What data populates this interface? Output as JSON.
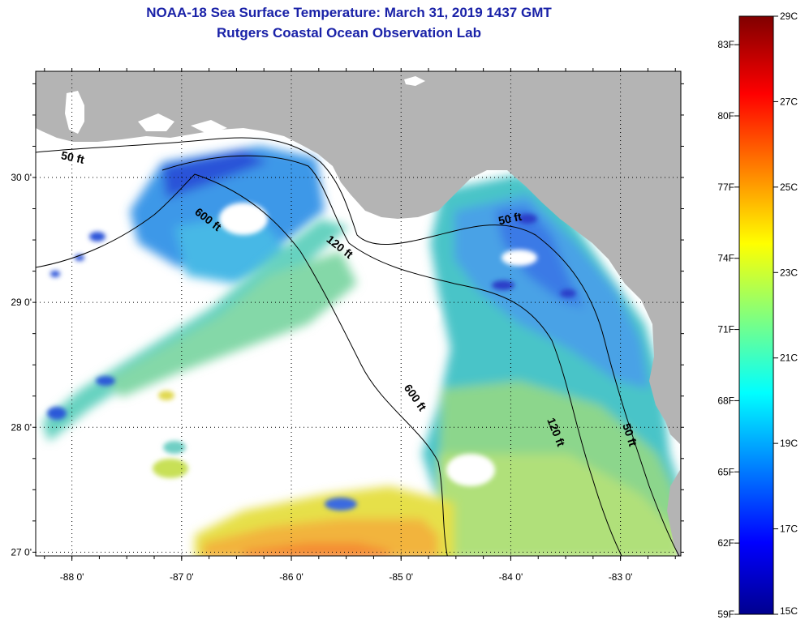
{
  "title": {
    "line1": "NOAA-18 Sea Surface Temperature:  March 31, 2019 1437 GMT",
    "line2": "Rutgers Coastal Ocean Observation Lab"
  },
  "map": {
    "lon_range": [
      -88.33,
      -82.45
    ],
    "lat_range": [
      26.97,
      30.85
    ],
    "lon_ticks": [
      {
        "value": -88,
        "label": "-88 0'"
      },
      {
        "value": -87,
        "label": "-87 0'"
      },
      {
        "value": -86,
        "label": "-86 0'"
      },
      {
        "value": -85,
        "label": "-85 0'"
      },
      {
        "value": -84,
        "label": "-84 0'"
      },
      {
        "value": -83,
        "label": "-83 0'"
      }
    ],
    "lat_ticks": [
      {
        "value": 27,
        "label": "27 0'"
      },
      {
        "value": 28,
        "label": "28 0'"
      },
      {
        "value": 29,
        "label": "29 0'"
      },
      {
        "value": 30,
        "label": "30 0'"
      }
    ],
    "contour_labels": [
      {
        "text": "50 ft",
        "lon": -88.0,
        "lat": 30.13,
        "angle": 12
      },
      {
        "text": "600 ft",
        "lon": -86.78,
        "lat": 29.64,
        "angle": 38
      },
      {
        "text": "120 ft",
        "lon": -85.58,
        "lat": 29.42,
        "angle": 38
      },
      {
        "text": "600 ft",
        "lon": -84.9,
        "lat": 28.22,
        "angle": 55
      },
      {
        "text": "50 ft",
        "lon": -84.0,
        "lat": 29.64,
        "angle": -12
      },
      {
        "text": "120 ft",
        "lon": -83.62,
        "lat": 27.95,
        "angle": 68
      },
      {
        "text": "50 ft",
        "lon": -82.95,
        "lat": 27.93,
        "angle": 72
      }
    ],
    "colors": {
      "land": "#b4b4b4",
      "cloud": "#ffffff",
      "contour": "#000000"
    }
  },
  "colorbar": {
    "min_c": 15,
    "max_c": 29,
    "celsius_ticks": [
      {
        "value": 15,
        "label": "15C"
      },
      {
        "value": 17,
        "label": "17C"
      },
      {
        "value": 19,
        "label": "19C"
      },
      {
        "value": 21,
        "label": "21C"
      },
      {
        "value": 23,
        "label": "23C"
      },
      {
        "value": 25,
        "label": "25C"
      },
      {
        "value": 27,
        "label": "27C"
      },
      {
        "value": 29,
        "label": "29C"
      }
    ],
    "fahrenheit_ticks": [
      {
        "value": 59,
        "label": "59F"
      },
      {
        "value": 62,
        "label": "62F"
      },
      {
        "value": 65,
        "label": "65F"
      },
      {
        "value": 68,
        "label": "68F"
      },
      {
        "value": 71,
        "label": "71F"
      },
      {
        "value": 74,
        "label": "74F"
      },
      {
        "value": 77,
        "label": "77F"
      },
      {
        "value": 80,
        "label": "80F"
      },
      {
        "value": 83,
        "label": "83F"
      }
    ]
  }
}
